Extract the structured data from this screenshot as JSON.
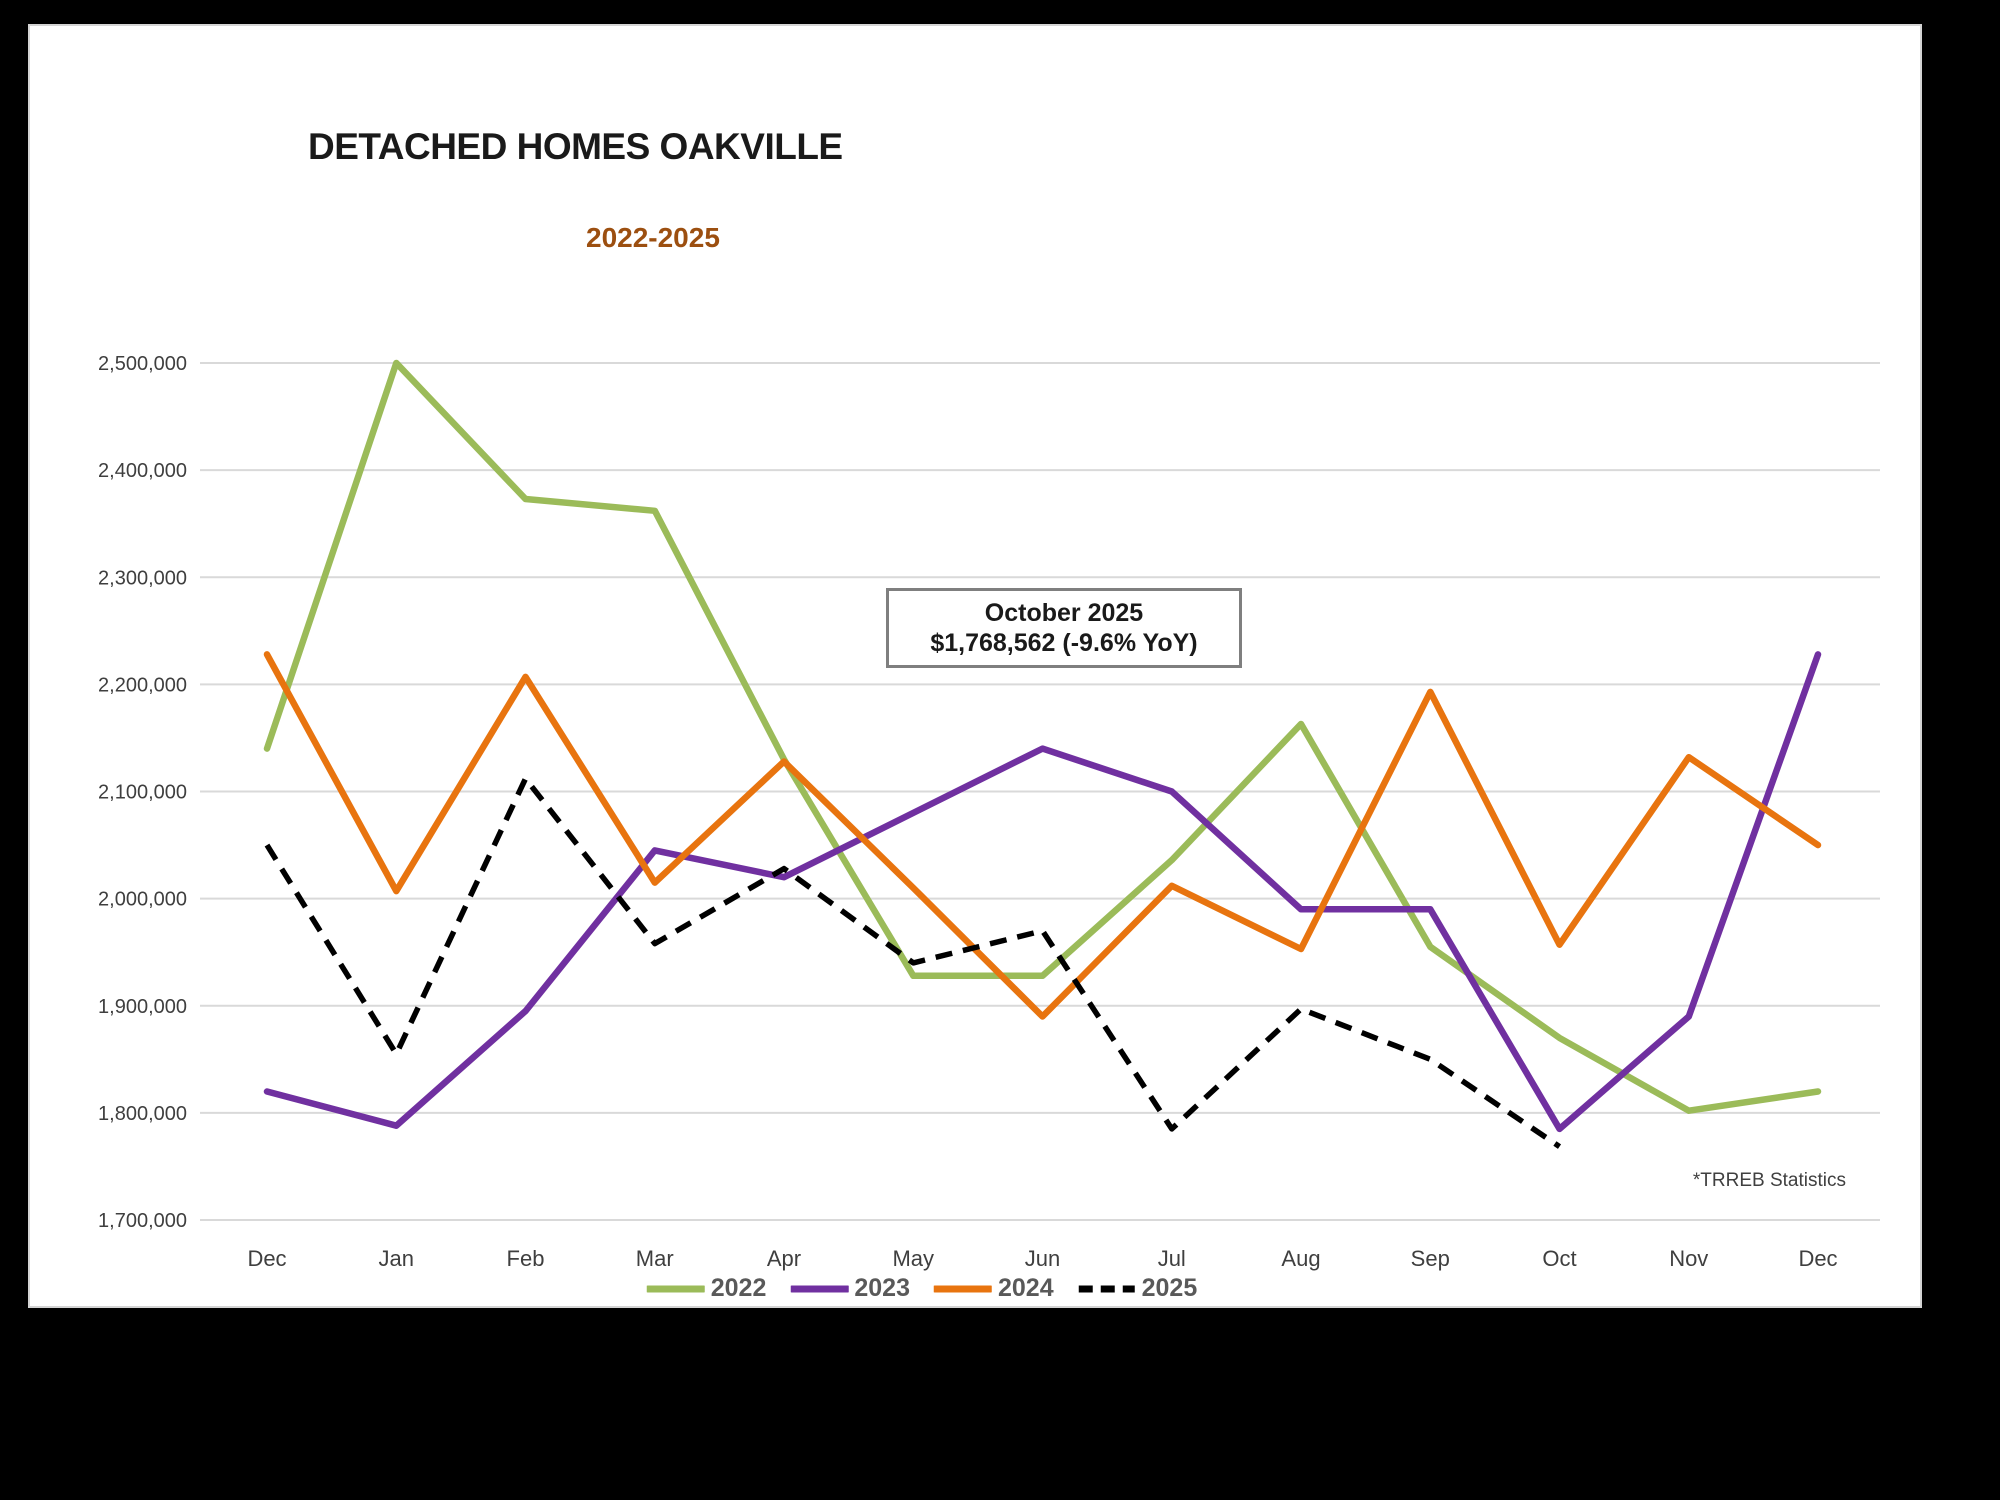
{
  "header": {
    "title": "DETACHED HOMES OAKVILLE",
    "subtitle": "2022-2025"
  },
  "annotation": {
    "line1": "October 2025",
    "line2": "$1,768,562 (-9.6% YoY)"
  },
  "footnote": "*TRREB Statistics",
  "colors": {
    "page_bg": "#000000",
    "canvas_bg": "#FFFFFF",
    "subtitle_text": "#9C4F10",
    "gridline": "#D9D9D9",
    "axis_text": "#3F3F3F",
    "legend_text": "#595959",
    "annotation_border": "#7F7F7F",
    "series_2022": "#9BBB59",
    "series_2023": "#7030A0",
    "series_2024": "#E8740F",
    "series_2025": "#000000"
  },
  "chart_data": {
    "type": "line",
    "title": "DETACHED HOMES OAKVILLE",
    "subtitle": "2022-2025",
    "categories": [
      "Dec",
      "Jan",
      "Feb",
      "Mar",
      "Apr",
      "May",
      "Jun",
      "Jul",
      "Aug",
      "Sep",
      "Oct",
      "Nov",
      "Dec"
    ],
    "series": [
      {
        "name": "2022",
        "color": "#9BBB59",
        "dashed": false,
        "values": [
          2140000,
          2500000,
          2373000,
          2362000,
          2130000,
          1928000,
          1928000,
          2036000,
          2163000,
          1955000,
          1870000,
          1802000,
          1820000
        ]
      },
      {
        "name": "2023",
        "color": "#7030A0",
        "dashed": false,
        "values": [
          1820000,
          1788000,
          1895000,
          2045000,
          2020000,
          2080000,
          2140000,
          2100000,
          1990000,
          1990000,
          1785000,
          1890000,
          2228000
        ]
      },
      {
        "name": "2024",
        "color": "#E8740F",
        "dashed": false,
        "values": [
          2228000,
          2007000,
          2207000,
          2015000,
          2128000,
          2010000,
          1890000,
          2012000,
          1953000,
          2193000,
          1957000,
          2132000,
          2050000
        ]
      },
      {
        "name": "2025",
        "color": "#000000",
        "dashed": true,
        "values": [
          2050000,
          1855000,
          2112000,
          1958000,
          2028000,
          1940000,
          1970000,
          1785000,
          1897000,
          1850000,
          1768562,
          null,
          null
        ]
      }
    ],
    "xlabel": "",
    "ylabel": "",
    "ylim": [
      1700000,
      2500000
    ],
    "ytick_step": 100000,
    "grid": true,
    "legend_position": "bottom",
    "annotation": {
      "label": "October 2025",
      "value": "$1,768,562 (-9.6% YoY)"
    }
  }
}
